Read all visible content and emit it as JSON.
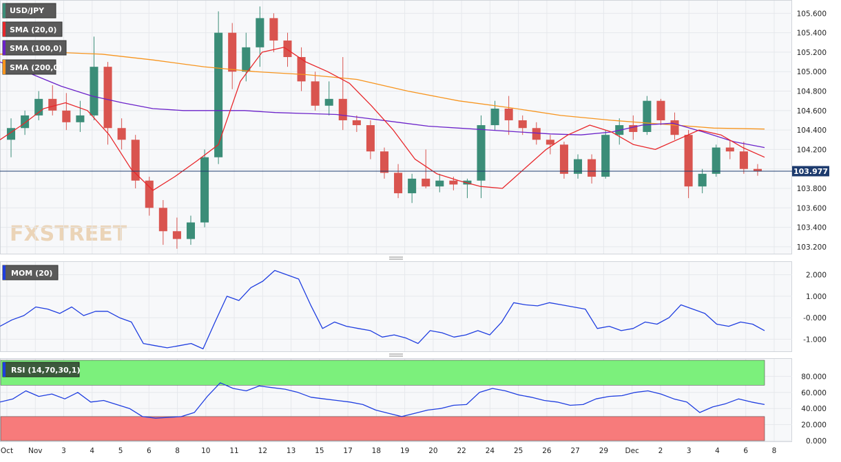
{
  "colors": {
    "up": "#3b8d78",
    "down": "#d9544f",
    "sma20": "#e8262a",
    "sma100": "#6a21c9",
    "sma200": "#f7941d",
    "mom": "#1e3de0",
    "rsi": "#1e3de0",
    "rsi_overbought": "#7cf07c",
    "rsi_oversold": "#f77b7b",
    "price_line": "#1d3b6e",
    "badge_bg": "#5a5a5a"
  },
  "badges": {
    "symbol": "USD/JPY",
    "sma20": "SMA (20,0)",
    "sma100": "SMA (100,0)",
    "sma200": "SMA (200,0)",
    "mom": "MOM (20)",
    "rsi": "RSI (14,70,30,1)"
  },
  "watermark": "FXSTREET",
  "current_price_label": "103.977",
  "chart_data": [
    {
      "type": "candlestick",
      "title": "USD/JPY",
      "ylim": [
        103.15,
        105.68
      ],
      "y_ticks": [
        "103.200",
        "103.400",
        "103.600",
        "103.800",
        "104.000",
        "104.200",
        "104.400",
        "104.600",
        "104.800",
        "105.000",
        "105.200",
        "105.400",
        "105.600"
      ],
      "current_price": 103.977,
      "x_date_labels": [
        "Oct",
        "Nov",
        "3",
        "4",
        "5",
        "6",
        "8",
        "10",
        "11",
        "12",
        "13",
        "15",
        "17",
        "18",
        "19",
        "20",
        "22",
        "24",
        "25",
        "26",
        "27",
        "29",
        "Dec",
        "2",
        "3",
        "4",
        "6",
        "8"
      ],
      "sma_20": [
        104.3,
        104.45,
        104.62,
        104.68,
        104.6,
        104.35,
        104.0,
        103.78,
        103.92,
        104.08,
        104.25,
        104.9,
        105.2,
        105.25,
        105.1,
        105.0,
        104.88,
        104.65,
        104.4,
        104.1,
        103.95,
        103.88,
        103.82,
        103.8,
        104.0,
        104.2,
        104.35,
        104.45,
        104.38,
        104.25,
        104.2,
        104.3,
        104.4,
        104.35,
        104.22,
        104.12
      ],
      "sma_100": [
        105.1,
        104.98,
        104.85,
        104.75,
        104.68,
        104.62,
        104.6,
        104.6,
        104.6,
        104.58,
        104.57,
        104.56,
        104.52,
        104.48,
        104.44,
        104.42,
        104.4,
        104.38,
        104.36,
        104.35,
        104.38,
        104.45,
        104.47,
        104.38,
        104.28,
        104.22
      ],
      "sma_200": [
        105.18,
        105.2,
        105.18,
        105.12,
        105.05,
        105.0,
        104.97,
        104.92,
        104.8,
        104.7,
        104.63,
        104.55,
        104.5,
        104.46,
        104.42,
        104.41
      ],
      "candles": [
        {
          "o": 104.3,
          "h": 104.52,
          "l": 104.12,
          "c": 104.42
        },
        {
          "o": 104.42,
          "h": 104.6,
          "l": 104.35,
          "c": 104.55
        },
        {
          "o": 104.55,
          "h": 104.8,
          "l": 104.5,
          "c": 104.72
        },
        {
          "o": 104.72,
          "h": 104.86,
          "l": 104.55,
          "c": 104.6
        },
        {
          "o": 104.6,
          "h": 104.78,
          "l": 104.4,
          "c": 104.48
        },
        {
          "o": 104.48,
          "h": 104.7,
          "l": 104.38,
          "c": 104.55
        },
        {
          "o": 104.55,
          "h": 105.36,
          "l": 104.5,
          "c": 105.05
        },
        {
          "o": 105.05,
          "h": 105.1,
          "l": 104.25,
          "c": 104.42
        },
        {
          "o": 104.42,
          "h": 104.52,
          "l": 104.2,
          "c": 104.3
        },
        {
          "o": 104.3,
          "h": 104.35,
          "l": 103.8,
          "c": 103.88
        },
        {
          "o": 103.88,
          "h": 103.92,
          "l": 103.52,
          "c": 103.6
        },
        {
          "o": 103.6,
          "h": 103.68,
          "l": 103.22,
          "c": 103.36
        },
        {
          "o": 103.36,
          "h": 103.5,
          "l": 103.18,
          "c": 103.28
        },
        {
          "o": 103.28,
          "h": 103.52,
          "l": 103.22,
          "c": 103.45
        },
        {
          "o": 103.45,
          "h": 104.2,
          "l": 103.4,
          "c": 104.12
        },
        {
          "o": 104.12,
          "h": 105.62,
          "l": 104.05,
          "c": 105.4
        },
        {
          "o": 105.4,
          "h": 105.5,
          "l": 104.82,
          "c": 105.0
        },
        {
          "o": 105.0,
          "h": 105.4,
          "l": 104.9,
          "c": 105.25
        },
        {
          "o": 105.25,
          "h": 105.67,
          "l": 105.05,
          "c": 105.55
        },
        {
          "o": 105.55,
          "h": 105.6,
          "l": 105.2,
          "c": 105.32
        },
        {
          "o": 105.32,
          "h": 105.4,
          "l": 105.05,
          "c": 105.15
        },
        {
          "o": 105.15,
          "h": 105.25,
          "l": 104.8,
          "c": 104.9
        },
        {
          "o": 104.9,
          "h": 105.0,
          "l": 104.6,
          "c": 104.65
        },
        {
          "o": 104.65,
          "h": 104.9,
          "l": 104.55,
          "c": 104.72
        },
        {
          "o": 104.72,
          "h": 105.15,
          "l": 104.4,
          "c": 104.5
        },
        {
          "o": 104.5,
          "h": 104.55,
          "l": 104.38,
          "c": 104.45
        },
        {
          "o": 104.45,
          "h": 104.5,
          "l": 104.1,
          "c": 104.18
        },
        {
          "o": 104.18,
          "h": 104.22,
          "l": 103.9,
          "c": 103.96
        },
        {
          "o": 103.96,
          "h": 104.05,
          "l": 103.7,
          "c": 103.75
        },
        {
          "o": 103.75,
          "h": 103.95,
          "l": 103.65,
          "c": 103.9
        },
        {
          "o": 103.9,
          "h": 104.2,
          "l": 103.8,
          "c": 103.82
        },
        {
          "o": 103.82,
          "h": 103.95,
          "l": 103.76,
          "c": 103.88
        },
        {
          "o": 103.88,
          "h": 103.92,
          "l": 103.78,
          "c": 103.84
        },
        {
          "o": 103.84,
          "h": 103.9,
          "l": 103.7,
          "c": 103.88
        },
        {
          "o": 103.88,
          "h": 104.55,
          "l": 103.7,
          "c": 104.45
        },
        {
          "o": 104.45,
          "h": 104.7,
          "l": 104.4,
          "c": 104.62
        },
        {
          "o": 104.62,
          "h": 104.75,
          "l": 104.35,
          "c": 104.5
        },
        {
          "o": 104.5,
          "h": 104.55,
          "l": 104.35,
          "c": 104.42
        },
        {
          "o": 104.42,
          "h": 104.48,
          "l": 104.25,
          "c": 104.3
        },
        {
          "o": 104.3,
          "h": 104.35,
          "l": 104.15,
          "c": 104.25
        },
        {
          "o": 104.25,
          "h": 104.28,
          "l": 103.9,
          "c": 103.95
        },
        {
          "o": 103.95,
          "h": 104.15,
          "l": 103.9,
          "c": 104.1
        },
        {
          "o": 104.1,
          "h": 104.15,
          "l": 103.85,
          "c": 103.92
        },
        {
          "o": 103.92,
          "h": 104.4,
          "l": 103.9,
          "c": 104.35
        },
        {
          "o": 104.35,
          "h": 104.52,
          "l": 104.25,
          "c": 104.45
        },
        {
          "o": 104.45,
          "h": 104.55,
          "l": 104.3,
          "c": 104.38
        },
        {
          "o": 104.38,
          "h": 104.75,
          "l": 104.35,
          "c": 104.7
        },
        {
          "o": 104.7,
          "h": 104.72,
          "l": 104.45,
          "c": 104.5
        },
        {
          "o": 104.5,
          "h": 104.58,
          "l": 104.3,
          "c": 104.35
        },
        {
          "o": 104.35,
          "h": 104.4,
          "l": 103.7,
          "c": 103.82
        },
        {
          "o": 103.82,
          "h": 104.0,
          "l": 103.75,
          "c": 103.95
        },
        {
          "o": 103.95,
          "h": 104.25,
          "l": 103.92,
          "c": 104.22
        },
        {
          "o": 104.22,
          "h": 104.3,
          "l": 104.1,
          "c": 104.18
        },
        {
          "o": 104.18,
          "h": 104.28,
          "l": 103.95,
          "c": 104.0
        },
        {
          "o": 104.0,
          "h": 104.05,
          "l": 103.93,
          "c": 103.977
        }
      ]
    },
    {
      "type": "line",
      "title": "MOM (20)",
      "ylim": [
        -1.5,
        2.5
      ],
      "y_ticks": [
        "2.000",
        "1.000",
        "-0.000",
        "-1.000"
      ],
      "values": [
        -0.4,
        -0.1,
        0.1,
        0.5,
        0.4,
        0.2,
        0.5,
        0.1,
        0.3,
        0.3,
        0.0,
        -0.2,
        -1.2,
        -1.3,
        -1.4,
        -1.3,
        -1.2,
        -1.45,
        -0.2,
        1.0,
        0.8,
        1.4,
        1.7,
        2.2,
        2.0,
        1.8,
        0.6,
        -0.5,
        -0.2,
        -0.4,
        -0.5,
        -0.6,
        -0.9,
        -0.8,
        -0.95,
        -1.2,
        -0.6,
        -0.7,
        -0.9,
        -0.8,
        -0.6,
        -0.8,
        -0.2,
        0.7,
        0.6,
        0.55,
        0.7,
        0.6,
        0.5,
        0.4,
        -0.5,
        -0.4,
        -0.6,
        -0.5,
        -0.2,
        -0.3,
        0.0,
        0.6,
        0.4,
        0.2,
        -0.3,
        -0.4,
        -0.2,
        -0.3,
        -0.6
      ]
    },
    {
      "type": "line",
      "title": "RSI (14,70,30,1)",
      "ylim": [
        0,
        100
      ],
      "y_ticks": [
        "80.000",
        "60.000",
        "40.000",
        "20.000",
        "0.000"
      ],
      "overbought": 70,
      "oversold": 30,
      "values": [
        48,
        52,
        62,
        55,
        58,
        52,
        60,
        48,
        50,
        45,
        40,
        30,
        28,
        29,
        30,
        35,
        55,
        72,
        65,
        62,
        68,
        66,
        64,
        60,
        54,
        52,
        50,
        48,
        45,
        38,
        34,
        30,
        34,
        38,
        40,
        44,
        45,
        60,
        65,
        62,
        57,
        54,
        50,
        48,
        44,
        45,
        52,
        55,
        56,
        60,
        62,
        58,
        52,
        48,
        35,
        42,
        46,
        52,
        48,
        45
      ]
    }
  ]
}
